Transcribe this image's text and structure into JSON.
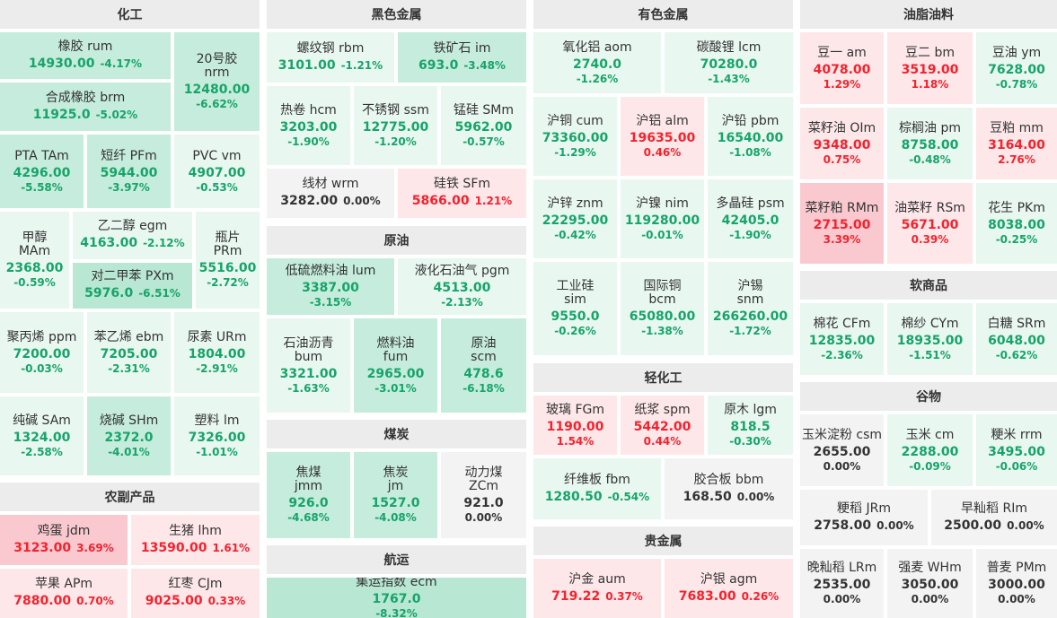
{
  "sections": {
    "chem": "化工",
    "ferrous": "黑色金属",
    "nonferrous": "有色金属",
    "oils": "油脂油料",
    "agri": "农副产品",
    "crude": "原油",
    "coal": "煤炭",
    "shipping": "航运",
    "light": "轻化工",
    "precious": "贵金属",
    "soft": "软商品",
    "grain": "谷物"
  },
  "tiles": {
    "rum": {
      "name": "橡胶  rum",
      "price": "14930.00",
      "pct": "-4.17%",
      "dir": "down"
    },
    "nrm": {
      "name": "20号胶",
      "name2": "nrm",
      "price": "12480.00",
      "pct": "-6.62%",
      "dir": "down"
    },
    "brm": {
      "name": "合成橡胶  brm",
      "price": "11925.0",
      "pct": "-5.02%",
      "dir": "down"
    },
    "TAm": {
      "name": "PTA  TAm",
      "price": "4296.00",
      "pct": "-5.58%",
      "dir": "down"
    },
    "PFm": {
      "name": "短纤  PFm",
      "price": "5944.00",
      "pct": "-3.97%",
      "dir": "down"
    },
    "vm": {
      "name": "PVC  vm",
      "price": "4907.00",
      "pct": "-0.53%",
      "dir": "down"
    },
    "MAm": {
      "name": "甲醇",
      "name2": "MAm",
      "price": "2368.00",
      "pct": "-0.59%",
      "dir": "down"
    },
    "egm": {
      "name": "乙二醇  egm",
      "price": "4163.00",
      "pct": "-2.12%",
      "dir": "down"
    },
    "PRm": {
      "name": "瓶片",
      "name2": "PRm",
      "price": "5516.00",
      "pct": "-2.72%",
      "dir": "down"
    },
    "PXm": {
      "name": "对二甲苯  PXm",
      "price": "5976.0",
      "pct": "-6.51%",
      "dir": "down"
    },
    "ppm": {
      "name": "聚丙烯  ppm",
      "price": "7200.00",
      "pct": "-0.03%",
      "dir": "down"
    },
    "ebm": {
      "name": "苯乙烯  ebm",
      "price": "7205.00",
      "pct": "-2.31%",
      "dir": "down"
    },
    "URm": {
      "name": "尿素  URm",
      "price": "1804.00",
      "pct": "-2.91%",
      "dir": "down"
    },
    "SAm": {
      "name": "纯碱  SAm",
      "price": "1324.00",
      "pct": "-2.58%",
      "dir": "down"
    },
    "SHm": {
      "name": "烧碱  SHm",
      "price": "2372.0",
      "pct": "-4.01%",
      "dir": "down"
    },
    "lm": {
      "name": "塑料  lm",
      "price": "7326.00",
      "pct": "-1.01%",
      "dir": "down"
    },
    "jdm": {
      "name": "鸡蛋  jdm",
      "price": "3123.00",
      "pct": "3.69%",
      "dir": "up"
    },
    "lhm": {
      "name": "生猪  lhm",
      "price": "13590.00",
      "pct": "1.61%",
      "dir": "up"
    },
    "APm": {
      "name": "苹果  APm",
      "price": "7880.00",
      "pct": "0.70%",
      "dir": "up"
    },
    "CJm": {
      "name": "红枣  CJm",
      "price": "9025.00",
      "pct": "0.33%",
      "dir": "up"
    },
    "rbm": {
      "name": "螺纹钢  rbm",
      "price": "3101.00",
      "pct": "-1.21%",
      "dir": "down"
    },
    "im": {
      "name": "铁矿石  im",
      "price": "693.0",
      "pct": "-3.48%",
      "dir": "down"
    },
    "hcm": {
      "name": "热卷  hcm",
      "price": "3203.00",
      "pct": "-1.90%",
      "dir": "down"
    },
    "ssm": {
      "name": "不锈钢  ssm",
      "price": "12775.00",
      "pct": "-1.20%",
      "dir": "down"
    },
    "SMm": {
      "name": "锰硅  SMm",
      "price": "5962.00",
      "pct": "-0.57%",
      "dir": "down"
    },
    "wrm": {
      "name": "线材  wrm",
      "price": "3282.00",
      "pct": "0.00%",
      "dir": "flat"
    },
    "SFm": {
      "name": "硅铁  SFm",
      "price": "5866.00",
      "pct": "1.21%",
      "dir": "up"
    },
    "lum": {
      "name": "低硫燃料油  lum",
      "price": "3387.00",
      "pct": "-3.15%",
      "dir": "down"
    },
    "pgm": {
      "name": "液化石油气  pgm",
      "price": "4513.00",
      "pct": "-2.13%",
      "dir": "down"
    },
    "bum": {
      "name": "石油沥青",
      "name2": "bum",
      "price": "3321.00",
      "pct": "-1.63%",
      "dir": "down"
    },
    "fum": {
      "name": "燃料油",
      "name2": "fum",
      "price": "2965.00",
      "pct": "-3.01%",
      "dir": "down"
    },
    "scm": {
      "name": "原油",
      "name2": "scm",
      "price": "478.6",
      "pct": "-6.18%",
      "dir": "down"
    },
    "jmm": {
      "name": "焦煤",
      "name2": "jmm",
      "price": "926.0",
      "pct": "-4.68%",
      "dir": "down"
    },
    "jm": {
      "name": "焦炭",
      "name2": "jm",
      "price": "1527.0",
      "pct": "-4.08%",
      "dir": "down"
    },
    "ZCm": {
      "name": "动力煤",
      "name2": "ZCm",
      "price": "921.0",
      "pct": "0.00%",
      "dir": "flat"
    },
    "ecm": {
      "name": "集运指数  ecm",
      "price": "1767.0",
      "pct": "-8.32%",
      "dir": "down"
    },
    "aom": {
      "name": "氧化铝  aom",
      "price": "2740.0",
      "pct": "-1.26%",
      "dir": "down"
    },
    "lcm": {
      "name": "碳酸锂  lcm",
      "price": "70280.0",
      "pct": "-1.43%",
      "dir": "down"
    },
    "cum": {
      "name": "沪铜  cum",
      "price": "73360.00",
      "pct": "-1.29%",
      "dir": "down"
    },
    "alm": {
      "name": "沪铝  alm",
      "price": "19635.00",
      "pct": "0.46%",
      "dir": "up"
    },
    "pbm": {
      "name": "沪铅  pbm",
      "price": "16540.00",
      "pct": "-1.08%",
      "dir": "down"
    },
    "znm": {
      "name": "沪锌  znm",
      "price": "22295.00",
      "pct": "-0.42%",
      "dir": "down"
    },
    "nim": {
      "name": "沪镍  nim",
      "price": "119280.00",
      "pct": "-0.01%",
      "dir": "down"
    },
    "psm": {
      "name": "多晶硅  psm",
      "price": "42405.0",
      "pct": "-1.90%",
      "dir": "down"
    },
    "sim": {
      "name": "工业硅",
      "name2": "sim",
      "price": "9550.0",
      "pct": "-0.26%",
      "dir": "down"
    },
    "bcm": {
      "name": "国际铜",
      "name2": "bcm",
      "price": "65080.00",
      "pct": "-1.38%",
      "dir": "down"
    },
    "snm": {
      "name": "沪锡",
      "name2": "snm",
      "price": "266260.00",
      "pct": "-1.72%",
      "dir": "down"
    },
    "FGm": {
      "name": "玻璃  FGm",
      "price": "1190.00",
      "pct": "1.54%",
      "dir": "up"
    },
    "spm": {
      "name": "纸浆  spm",
      "price": "5442.00",
      "pct": "0.44%",
      "dir": "up"
    },
    "lgm": {
      "name": "原木  lgm",
      "price": "818.5",
      "pct": "-0.30%",
      "dir": "down"
    },
    "fbm": {
      "name": "纤维板  fbm",
      "price": "1280.50",
      "pct": "-0.54%",
      "dir": "down"
    },
    "bbm": {
      "name": "胶合板  bbm",
      "price": "168.50",
      "pct": "0.00%",
      "dir": "flat"
    },
    "aum": {
      "name": "沪金  aum",
      "price": "719.22",
      "pct": "0.37%",
      "dir": "up"
    },
    "agm": {
      "name": "沪银  agm",
      "price": "7683.00",
      "pct": "0.26%",
      "dir": "up"
    },
    "am": {
      "name": "豆一  am",
      "price": "4078.00",
      "pct": "1.29%",
      "dir": "up"
    },
    "bm": {
      "name": "豆二  bm",
      "price": "3519.00",
      "pct": "1.18%",
      "dir": "up"
    },
    "ym": {
      "name": "豆油  ym",
      "price": "7628.00",
      "pct": "-0.78%",
      "dir": "down"
    },
    "OIm": {
      "name": "菜籽油  OIm",
      "price": "9348.00",
      "pct": "0.75%",
      "dir": "up"
    },
    "pm": {
      "name": "棕榈油  pm",
      "price": "8758.00",
      "pct": "-0.48%",
      "dir": "down"
    },
    "mm": {
      "name": "豆粕  mm",
      "price": "3164.00",
      "pct": "2.76%",
      "dir": "up"
    },
    "RMm": {
      "name": "菜籽粕  RMm",
      "price": "2715.00",
      "pct": "3.39%",
      "dir": "up"
    },
    "RSm": {
      "name": "油菜籽  RSm",
      "price": "5671.00",
      "pct": "0.39%",
      "dir": "up"
    },
    "PKm": {
      "name": "花生  PKm",
      "price": "8038.00",
      "pct": "-0.25%",
      "dir": "down"
    },
    "CFm": {
      "name": "棉花  CFm",
      "price": "12835.00",
      "pct": "-2.36%",
      "dir": "down"
    },
    "CYm": {
      "name": "棉纱  CYm",
      "price": "18935.00",
      "pct": "-1.51%",
      "dir": "down"
    },
    "SRm": {
      "name": "白糖  SRm",
      "price": "6048.00",
      "pct": "-0.62%",
      "dir": "down"
    },
    "csm": {
      "name": "玉米淀粉  csm",
      "price": "2655.00",
      "pct": "0.00%",
      "dir": "flat"
    },
    "cm": {
      "name": "玉米  cm",
      "price": "2288.00",
      "pct": "-0.09%",
      "dir": "down"
    },
    "rrm": {
      "name": "粳米  rrm",
      "price": "3495.00",
      "pct": "-0.06%",
      "dir": "down"
    },
    "JRm": {
      "name": "粳稻  JRm",
      "price": "2758.00",
      "pct": "0.00%",
      "dir": "flat"
    },
    "RIm": {
      "name": "早籼稻  RIm",
      "price": "2500.00",
      "pct": "0.00%",
      "dir": "flat"
    },
    "LRm": {
      "name": "晚籼稻  LRm",
      "price": "2535.00",
      "pct": "0.00%",
      "dir": "flat"
    },
    "WHm": {
      "name": "强麦  WHm",
      "price": "3050.00",
      "pct": "0.00%",
      "dir": "flat"
    },
    "PMm": {
      "name": "普麦  PMm",
      "price": "3000.00",
      "pct": "0.00%",
      "dir": "flat"
    }
  },
  "colors": {
    "up": "#f5222d",
    "down": "#17a469",
    "flat": "#333333"
  }
}
